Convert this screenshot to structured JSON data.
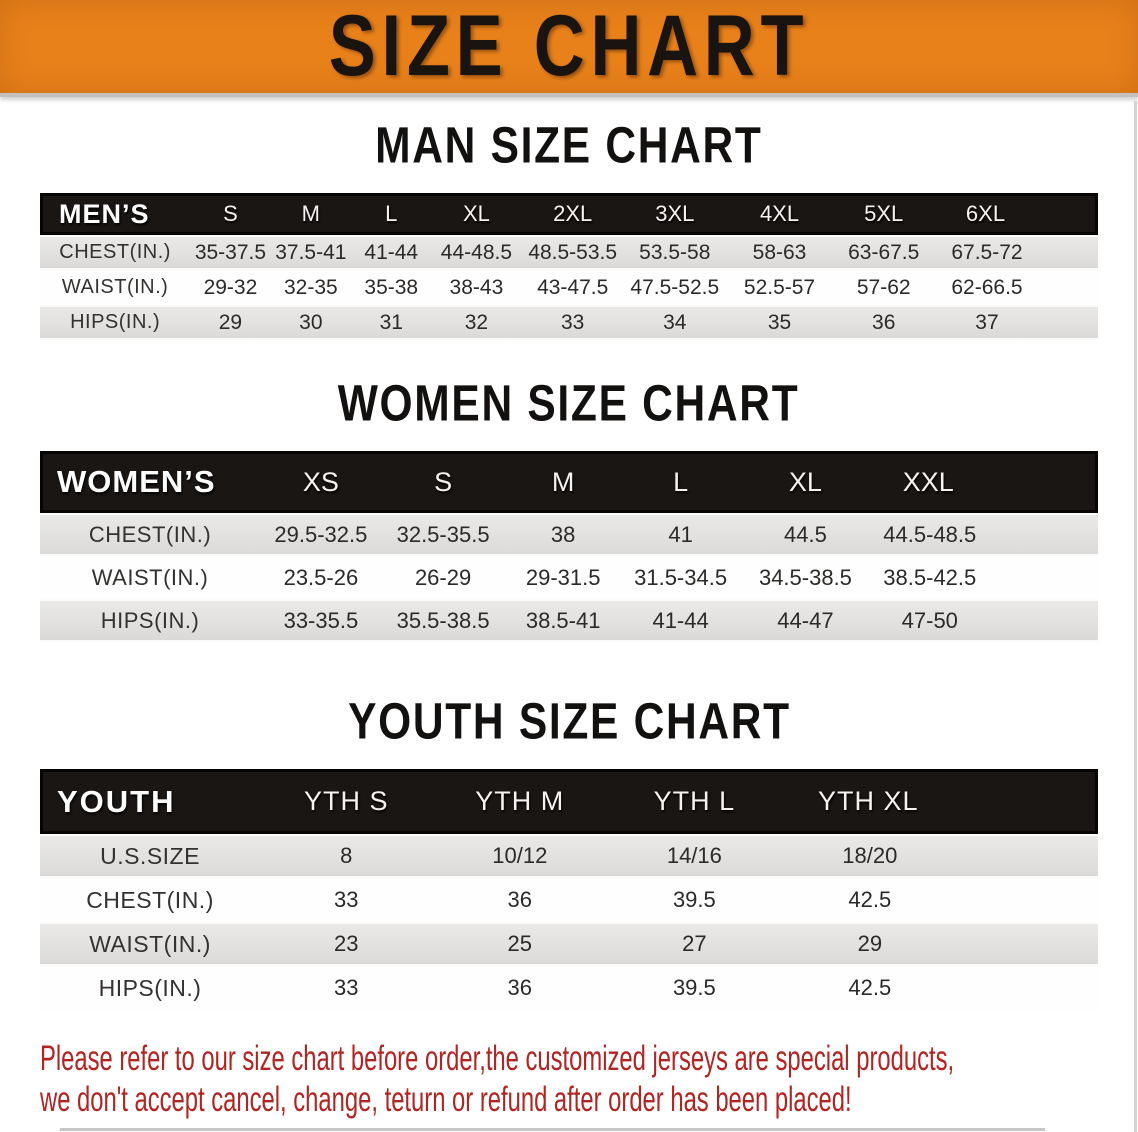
{
  "banner": {
    "title": "SIZE CHART",
    "bg_color": "#E8811A",
    "text_color": "#1A1410"
  },
  "sections": [
    {
      "id": "men",
      "title": "MAN SIZE CHART",
      "columns": [
        "MEN’S",
        "S",
        "M",
        "L",
        "XL",
        "2XL",
        "3XL",
        "4XL",
        "5XL",
        "6XL"
      ],
      "rows": [
        {
          "label": "CHEST(IN.)",
          "values": [
            "35-37.5",
            "37.5-41",
            "41-44",
            "44-48.5",
            "48.5-53.5",
            "53.5-58",
            "58-63",
            "63-67.5",
            "67.5-72"
          ]
        },
        {
          "label": "WAIST(IN.)",
          "values": [
            "29-32",
            "32-35",
            "35-38",
            "38-43",
            "43-47.5",
            "47.5-52.5",
            "52.5-57",
            "57-62",
            "62-66.5"
          ]
        },
        {
          "label": "HIPS(IN.)",
          "values": [
            "29",
            "30",
            "31",
            "32",
            "33",
            "34",
            "35",
            "36",
            "37"
          ]
        }
      ]
    },
    {
      "id": "women",
      "title": "WOMEN SIZE CHART",
      "columns": [
        "WOMEN’S",
        "XS",
        "S",
        "M",
        "L",
        "XL",
        "XXL"
      ],
      "rows": [
        {
          "label": "CHEST(IN.)",
          "values": [
            "29.5-32.5",
            "32.5-35.5",
            "38",
            "41",
            "44.5",
            "44.5-48.5"
          ]
        },
        {
          "label": "WAIST(IN.)",
          "values": [
            "23.5-26",
            "26-29",
            "29-31.5",
            "31.5-34.5",
            "34.5-38.5",
            "38.5-42.5"
          ]
        },
        {
          "label": "HIPS(IN.)",
          "values": [
            "33-35.5",
            "35.5-38.5",
            "38.5-41",
            "41-44",
            "44-47",
            "47-50"
          ]
        }
      ]
    },
    {
      "id": "youth",
      "title": "YOUTH SIZE CHART",
      "columns": [
        "YOUTH",
        "YTH S",
        "YTH M",
        "YTH L",
        "YTH XL"
      ],
      "rows": [
        {
          "label": "U.S.SIZE",
          "values": [
            "8",
            "10/12",
            "14/16",
            "18/20"
          ]
        },
        {
          "label": "CHEST(IN.)",
          "values": [
            "33",
            "36",
            "39.5",
            "42.5"
          ]
        },
        {
          "label": "WAIST(IN.)",
          "values": [
            "23",
            "25",
            "27",
            "29"
          ]
        },
        {
          "label": "HIPS(IN.)",
          "values": [
            "33",
            "36",
            "39.5",
            "42.5"
          ]
        }
      ]
    }
  ],
  "disclaimer": {
    "line1": "Please refer to our size chart before order,the customized jerseys are special products,",
    "line2": "we don't accept cancel, change, teturn or refund after order has been placed!",
    "color": "#B12422"
  }
}
